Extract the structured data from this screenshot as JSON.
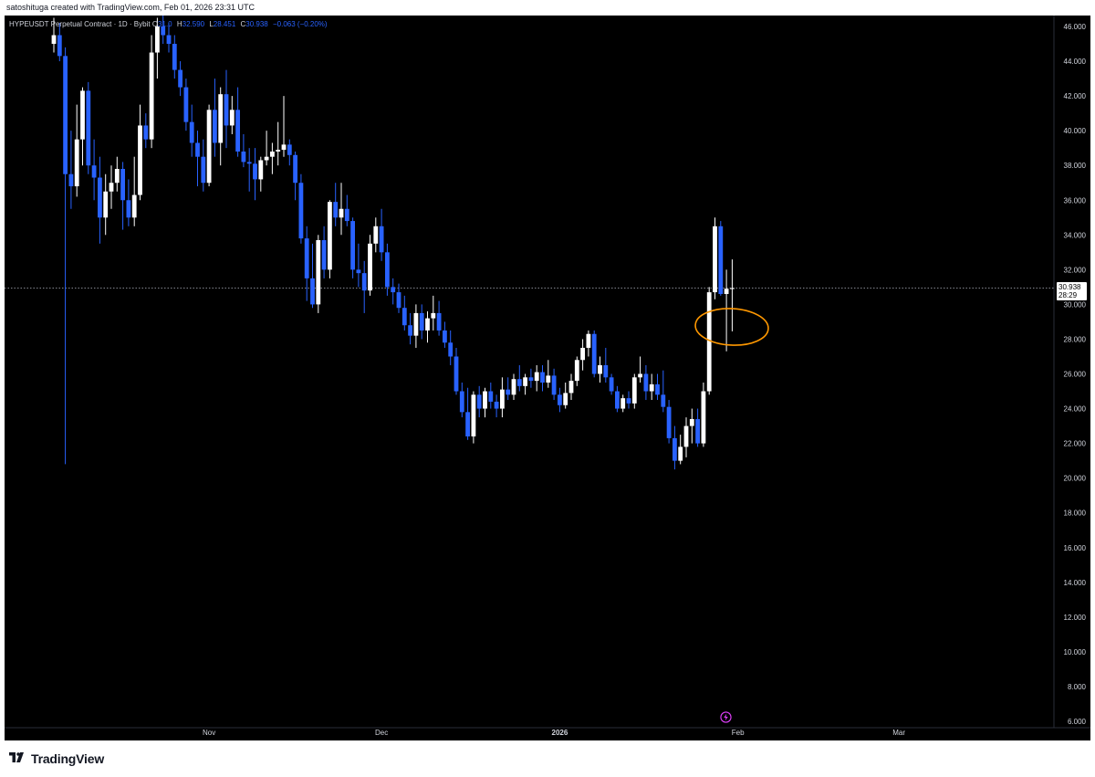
{
  "header": {
    "creator_line": "satoshituga created with TradingView.com, Feb 01, 2026 23:31 UTC"
  },
  "legend": {
    "symbol": "HYPEUSDT Perpetual Contract · 1D · Bybit",
    "open_label": "O",
    "open_value": "31.0",
    "high_label": "H",
    "high_value": "32.590",
    "low_label": "L",
    "low_value": "28.451",
    "close_label": "C",
    "close_value": "30.938",
    "change": "−0.063 (−0.20%)"
  },
  "price_tag": {
    "price": "30.938",
    "countdown": "28:29"
  },
  "footer": {
    "brand": "TradingView"
  },
  "colors": {
    "up": "#ffffff",
    "down": "#2962ff",
    "annotation": "#ff9800",
    "background": "#000000"
  },
  "chart_data": {
    "type": "candlestick",
    "title": "",
    "ylim": [
      6,
      46
    ],
    "y_ticks": [
      "6.000",
      "8.000",
      "10.000",
      "12.000",
      "14.000",
      "16.000",
      "18.000",
      "20.000",
      "22.000",
      "24.000",
      "26.000",
      "28.000",
      "30.000",
      "32.000",
      "34.000",
      "36.000",
      "38.000",
      "40.000",
      "42.000",
      "44.000",
      "46.000"
    ],
    "x_ticks": [
      {
        "label": "Nov",
        "index": 27
      },
      {
        "label": "Dec",
        "index": 57
      },
      {
        "label": "2026",
        "index": 88
      },
      {
        "label": "Feb",
        "index": 119
      },
      {
        "label": "Mar",
        "index": 147
      }
    ],
    "last_price": 30.938,
    "candles": [
      [
        45.0,
        46.5,
        44.5,
        45.5
      ],
      [
        45.5,
        46.2,
        44.0,
        44.3
      ],
      [
        44.3,
        44.8,
        20.8,
        37.5
      ],
      [
        37.5,
        40.0,
        35.5,
        36.8
      ],
      [
        36.8,
        41.5,
        36.2,
        39.5
      ],
      [
        39.5,
        42.5,
        38.0,
        42.3
      ],
      [
        42.3,
        42.8,
        37.5,
        38.0
      ],
      [
        38.0,
        39.5,
        36.0,
        37.3
      ],
      [
        37.3,
        38.5,
        33.5,
        35.0
      ],
      [
        35.0,
        37.5,
        34.0,
        36.5
      ],
      [
        36.5,
        38.0,
        35.5,
        37.0
      ],
      [
        37.0,
        38.5,
        36.5,
        37.8
      ],
      [
        37.8,
        38.2,
        34.3,
        36.0
      ],
      [
        36.0,
        37.2,
        34.5,
        35.0
      ],
      [
        35.0,
        38.5,
        34.5,
        36.3
      ],
      [
        36.3,
        41.5,
        36.0,
        40.3
      ],
      [
        40.3,
        41.0,
        39.0,
        39.5
      ],
      [
        39.5,
        45.5,
        39.0,
        44.5
      ],
      [
        44.5,
        46.5,
        43.0,
        46.0
      ],
      [
        46.0,
        46.8,
        45.0,
        45.5
      ],
      [
        45.5,
        46.2,
        44.5,
        45.0
      ],
      [
        45.0,
        45.5,
        43.0,
        43.5
      ],
      [
        43.5,
        44.0,
        42.0,
        42.5
      ],
      [
        42.5,
        43.0,
        40.0,
        40.5
      ],
      [
        40.5,
        41.5,
        38.5,
        39.3
      ],
      [
        39.3,
        40.0,
        36.8,
        38.5
      ],
      [
        38.5,
        39.5,
        36.5,
        37.0
      ],
      [
        37.0,
        41.5,
        36.8,
        41.2
      ],
      [
        41.2,
        43.0,
        38.5,
        39.3
      ],
      [
        39.3,
        42.5,
        38.0,
        42.1
      ],
      [
        42.1,
        43.5,
        39.0,
        40.3
      ],
      [
        40.3,
        42.0,
        39.8,
        41.2
      ],
      [
        41.2,
        42.5,
        38.5,
        38.8
      ],
      [
        38.8,
        39.8,
        37.9,
        38.2
      ],
      [
        38.2,
        39.0,
        36.5,
        38.1
      ],
      [
        38.1,
        39.0,
        36.0,
        37.2
      ],
      [
        37.2,
        38.5,
        36.5,
        38.3
      ],
      [
        38.3,
        40.0,
        38.0,
        38.5
      ],
      [
        38.5,
        39.3,
        37.5,
        38.8
      ],
      [
        38.8,
        40.5,
        38.0,
        38.9
      ],
      [
        38.9,
        42.0,
        38.5,
        39.2
      ],
      [
        39.2,
        39.5,
        38.0,
        38.6
      ],
      [
        38.6,
        38.8,
        36.0,
        37.0
      ],
      [
        37.0,
        37.5,
        33.5,
        33.8
      ],
      [
        33.8,
        34.5,
        30.2,
        31.5
      ],
      [
        31.5,
        33.5,
        29.8,
        30.0
      ],
      [
        30.0,
        34.0,
        29.5,
        33.7
      ],
      [
        33.7,
        34.5,
        31.5,
        32.0
      ],
      [
        32.0,
        36.0,
        31.5,
        35.9
      ],
      [
        35.9,
        37.0,
        34.5,
        35.0
      ],
      [
        35.0,
        37.0,
        34.0,
        35.5
      ],
      [
        35.5,
        36.3,
        34.5,
        34.8
      ],
      [
        34.8,
        35.0,
        31.5,
        32.0
      ],
      [
        32.0,
        33.5,
        31.0,
        31.8
      ],
      [
        31.8,
        32.5,
        29.5,
        30.8
      ],
      [
        30.8,
        34.0,
        30.5,
        33.5
      ],
      [
        33.5,
        35.0,
        33.0,
        34.5
      ],
      [
        34.5,
        35.5,
        32.5,
        33.0
      ],
      [
        33.0,
        33.5,
        30.5,
        31.0
      ],
      [
        31.0,
        31.5,
        30.0,
        30.7
      ],
      [
        30.7,
        31.2,
        29.5,
        29.8
      ],
      [
        29.8,
        30.5,
        28.5,
        28.8
      ],
      [
        28.8,
        29.5,
        27.7,
        28.2
      ],
      [
        28.2,
        30.0,
        27.5,
        29.5
      ],
      [
        29.5,
        30.0,
        28.0,
        28.5
      ],
      [
        28.5,
        29.6,
        27.8,
        29.2
      ],
      [
        29.2,
        30.5,
        28.5,
        29.5
      ],
      [
        29.5,
        30.2,
        28.2,
        28.5
      ],
      [
        28.5,
        29.0,
        27.5,
        27.8
      ],
      [
        27.8,
        28.5,
        26.5,
        27.0
      ],
      [
        27.0,
        27.5,
        24.8,
        25.0
      ],
      [
        25.0,
        25.5,
        23.5,
        23.8
      ],
      [
        23.8,
        25.2,
        22.2,
        22.4
      ],
      [
        22.4,
        25.0,
        22.0,
        24.8
      ],
      [
        24.8,
        25.3,
        23.5,
        24.0
      ],
      [
        24.0,
        25.2,
        23.5,
        25.0
      ],
      [
        25.0,
        25.5,
        24.0,
        24.4
      ],
      [
        24.4,
        24.8,
        23.5,
        24.0
      ],
      [
        24.0,
        25.8,
        23.5,
        25.1
      ],
      [
        25.1,
        25.8,
        24.5,
        24.8
      ],
      [
        24.8,
        26.0,
        24.5,
        25.7
      ],
      [
        25.7,
        26.5,
        25.0,
        25.3
      ],
      [
        25.3,
        26.0,
        24.8,
        25.8
      ],
      [
        25.8,
        26.3,
        25.2,
        25.6
      ],
      [
        25.6,
        26.5,
        25.0,
        26.1
      ],
      [
        26.1,
        26.5,
        25.0,
        25.5
      ],
      [
        25.5,
        26.8,
        25.2,
        25.9
      ],
      [
        25.9,
        26.3,
        24.5,
        24.8
      ],
      [
        24.8,
        25.2,
        23.8,
        24.2
      ],
      [
        24.2,
        25.5,
        24.0,
        24.9
      ],
      [
        24.9,
        26.0,
        24.5,
        25.6
      ],
      [
        25.6,
        27.0,
        25.3,
        26.8
      ],
      [
        26.8,
        28.0,
        26.2,
        27.5
      ],
      [
        27.5,
        28.5,
        27.0,
        28.3
      ],
      [
        28.3,
        28.5,
        25.8,
        26.0
      ],
      [
        26.0,
        27.0,
        25.5,
        26.5
      ],
      [
        26.5,
        27.5,
        25.5,
        25.8
      ],
      [
        25.8,
        26.0,
        24.8,
        25.0
      ],
      [
        25.0,
        25.3,
        23.8,
        24.0
      ],
      [
        24.0,
        24.8,
        23.8,
        24.6
      ],
      [
        24.6,
        25.0,
        24.0,
        24.3
      ],
      [
        24.3,
        26.0,
        24.0,
        25.8
      ],
      [
        25.8,
        27.0,
        25.5,
        26.0
      ],
      [
        26.0,
        26.5,
        24.5,
        25.0
      ],
      [
        25.0,
        26.0,
        24.5,
        25.4
      ],
      [
        25.4,
        26.0,
        24.5,
        24.8
      ],
      [
        24.8,
        26.2,
        23.8,
        24.1
      ],
      [
        24.1,
        24.5,
        22.0,
        22.3
      ],
      [
        22.3,
        23.0,
        20.5,
        21.0
      ],
      [
        21.0,
        22.5,
        20.8,
        21.8
      ],
      [
        21.8,
        23.5,
        21.2,
        23.0
      ],
      [
        23.0,
        24.0,
        22.0,
        23.4
      ],
      [
        23.4,
        24.0,
        21.8,
        22.0
      ],
      [
        22.0,
        25.5,
        21.8,
        25.0
      ],
      [
        25.0,
        31.0,
        24.8,
        30.7
      ],
      [
        30.7,
        35.0,
        30.3,
        34.5
      ],
      [
        34.5,
        34.8,
        30.5,
        30.6
      ],
      [
        30.6,
        32.0,
        27.3,
        30.9
      ],
      [
        30.9,
        32.59,
        28.45,
        30.938
      ]
    ]
  }
}
